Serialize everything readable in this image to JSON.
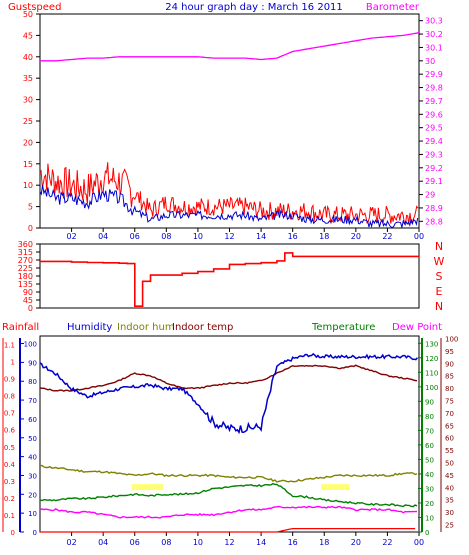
{
  "title": "24 hour graph day : March 16 2011",
  "colors": {
    "gust": "#ff0000",
    "wind": "#0000cc",
    "barometer": "#ff00ff",
    "direction": "#ff0000",
    "rainfall": "#ff0000",
    "humidity": "#0000cc",
    "indoor_hum": "#808000",
    "indoor_temp": "#800000",
    "temperature": "#008000",
    "dew_point": "#ff00ff",
    "highlight": "#ffff66",
    "axis_frame": "#000000"
  },
  "x_ticks": [
    "02",
    "04",
    "06",
    "08",
    "10",
    "12",
    "14",
    "16",
    "18",
    "20",
    "22",
    "00"
  ],
  "chart_data": [
    {
      "type": "line",
      "panel": "wind",
      "left_label": "Gustspeed",
      "right_label": "Barometer",
      "y_left": {
        "ticks": [
          0,
          5,
          10,
          15,
          20,
          25,
          30,
          35,
          40,
          45,
          50
        ],
        "ylim": [
          0,
          50
        ]
      },
      "y_right": {
        "ticks": [
          "28.8",
          "28.9",
          "29",
          "29.1",
          "29.2",
          "29.3",
          "29.4",
          "29.5",
          "29.6",
          "29.7",
          "29.8",
          "29.9",
          "30",
          "30.1",
          "30.2",
          "30.3"
        ],
        "ylim": [
          28.75,
          30.35
        ]
      },
      "x_hours": [
        0,
        1,
        2,
        3,
        4,
        5,
        6,
        7,
        8,
        9,
        10,
        11,
        12,
        13,
        14,
        15,
        16,
        17,
        18,
        19,
        20,
        21,
        22,
        23,
        24
      ],
      "series": [
        {
          "name": "Gustspeed",
          "axis": "left",
          "values": [
            13,
            11,
            10,
            9,
            12,
            11,
            8,
            4,
            6,
            5,
            5,
            5,
            5,
            5,
            4,
            4,
            4,
            4,
            3,
            3,
            3,
            3,
            3,
            3,
            3
          ]
        },
        {
          "name": "Windspeed",
          "axis": "left",
          "values": [
            9,
            7,
            7,
            6,
            8,
            7,
            4,
            2,
            3,
            3,
            3,
            3,
            3,
            3,
            2,
            3,
            3,
            2,
            2,
            2,
            2,
            1,
            1,
            1,
            2
          ]
        },
        {
          "name": "Barometer",
          "axis": "right",
          "values": [
            30.0,
            30.0,
            30.01,
            30.02,
            30.02,
            30.03,
            30.03,
            30.03,
            30.03,
            30.03,
            30.03,
            30.02,
            30.02,
            30.02,
            30.01,
            30.02,
            30.07,
            30.09,
            30.11,
            30.13,
            30.15,
            30.17,
            30.18,
            30.19,
            30.21
          ]
        }
      ]
    },
    {
      "type": "line",
      "panel": "direction",
      "y_left": {
        "ticks": [
          0,
          45,
          90,
          135,
          180,
          225,
          270,
          315,
          360
        ],
        "ylim": [
          0,
          360
        ]
      },
      "y_right_labels": [
        "N",
        "W",
        "S",
        "E",
        "N"
      ],
      "x_hours": [
        0,
        1,
        2,
        3,
        4,
        5,
        5.5,
        6,
        6.5,
        7,
        8,
        9,
        10,
        11,
        12,
        13,
        14,
        15,
        15.5,
        16,
        17,
        18,
        19,
        20,
        21,
        22,
        23,
        24
      ],
      "series": [
        {
          "name": "Wind direction",
          "values": [
            262,
            262,
            258,
            256,
            254,
            252,
            250,
            10,
            150,
            185,
            185,
            195,
            205,
            220,
            245,
            250,
            255,
            265,
            310,
            290,
            290,
            290,
            290,
            290,
            290,
            290,
            290,
            290
          ]
        }
      ]
    },
    {
      "type": "line",
      "panel": "temperatures",
      "headers": [
        "Rainfall",
        "Humidity",
        "Indoor hum",
        "Indoor temp",
        "Temperature",
        "Dew Point"
      ],
      "y_rain": {
        "ticks": [
          "0",
          "0.1",
          "0.2",
          "0.3",
          "0.4",
          "0.5",
          "0.6",
          "0.7",
          "0.8",
          "0.9",
          "1",
          "1.1"
        ],
        "ylim": [
          0,
          1.15
        ]
      },
      "y_humidity": {
        "ticks": [
          0,
          10,
          20,
          30,
          40,
          50,
          60,
          70,
          80,
          90,
          100
        ],
        "ylim": [
          0,
          104
        ]
      },
      "y_temp_outer": {
        "ticks": [
          0,
          10,
          20,
          30,
          40,
          50,
          60,
          70,
          80,
          90,
          100,
          110,
          120,
          130
        ],
        "ylim": [
          0,
          135
        ]
      },
      "y_temp_inner": {
        "ticks": [
          25,
          30,
          35,
          40,
          45,
          50,
          55,
          60,
          65,
          70,
          75,
          80,
          85,
          90,
          95,
          100
        ],
        "ylim": [
          22,
          101
        ]
      },
      "x_hours": [
        0,
        1,
        2,
        3,
        4,
        5,
        6,
        7,
        8,
        9,
        10,
        11,
        12,
        13,
        14,
        15,
        16,
        17,
        18,
        19,
        20,
        21,
        22,
        23,
        24
      ],
      "series": [
        {
          "name": "Humidity",
          "axis": "humidity",
          "values": [
            89,
            84,
            76,
            72,
            74,
            76,
            77,
            78,
            76,
            76,
            68,
            58,
            55,
            55,
            56,
            88,
            92,
            94,
            93,
            93,
            93,
            93,
            93,
            93,
            92
          ]
        },
        {
          "name": "Indoor hum",
          "axis": "humidity",
          "values": [
            35,
            34,
            33,
            32,
            32,
            31,
            30,
            31,
            30,
            30,
            30,
            30,
            29,
            29,
            29,
            27,
            27,
            28,
            29,
            30,
            30,
            30,
            30,
            31,
            31
          ]
        },
        {
          "name": "Indoor temp",
          "axis": "temp_inner",
          "values": [
            80,
            79,
            79,
            80,
            81,
            83,
            86,
            85,
            82,
            80,
            80,
            81,
            82,
            82,
            83,
            86,
            89,
            89,
            89,
            88,
            89,
            87,
            85,
            84,
            83
          ]
        },
        {
          "name": "Temperature",
          "axis": "temp_outer",
          "values": [
            22,
            22,
            23,
            23,
            24,
            25,
            26,
            25,
            26,
            26,
            27,
            30,
            31,
            32,
            32,
            33,
            25,
            24,
            22,
            21,
            20,
            19,
            19,
            18,
            18
          ]
        },
        {
          "name": "Dew Point",
          "axis": "temp_inner",
          "values": [
            31,
            31,
            30,
            30,
            29,
            28,
            28,
            28,
            28,
            29,
            29,
            29,
            30,
            31,
            31,
            32,
            32,
            32,
            32,
            32,
            31,
            31,
            31,
            30,
            30
          ]
        },
        {
          "name": "Rainfall",
          "axis": "rain",
          "values": [
            0,
            0,
            0,
            0,
            0,
            0,
            0,
            0,
            0,
            0,
            0,
            0,
            0,
            0,
            0,
            0,
            0.02,
            0.02,
            0.02,
            0.02,
            0.02,
            0.02,
            0.02,
            0.02,
            0.02
          ]
        }
      ]
    }
  ]
}
